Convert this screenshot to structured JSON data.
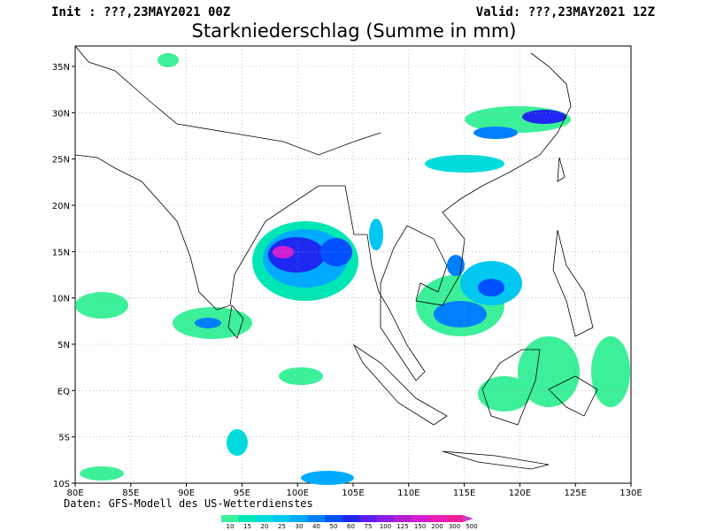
{
  "header": {
    "init": "Init : ???,23MAY2021 00Z",
    "valid": "Valid: ???,23MAY2021 12Z",
    "title": "Starkniederschlag (Summe in mm)"
  },
  "axes": {
    "lat_labels": [
      "35N",
      "30N",
      "25N",
      "20N",
      "15N",
      "10N",
      "5N",
      "EQ",
      "5S",
      "10S"
    ],
    "lon_labels": [
      "80E",
      "85E",
      "90E",
      "95E",
      "100E",
      "105E",
      "110E",
      "115E",
      "120E",
      "125E",
      "130E"
    ]
  },
  "footer": "Daten: GFS-Modell des US-Wetterdienstes",
  "legend": {
    "levels": [
      10,
      15,
      20,
      25,
      30,
      40,
      50,
      60,
      75,
      100,
      125,
      150,
      200,
      300,
      500
    ],
    "colors": [
      "#3cf09a",
      "#00e6b4",
      "#00dcdc",
      "#00c8f0",
      "#00aaff",
      "#0080ff",
      "#0050ff",
      "#1e28f0",
      "#5a1ef0",
      "#8c1ee6",
      "#b41ed2",
      "#d21ed2",
      "#e61eb4",
      "#f01e96",
      "#c83cc8"
    ]
  }
}
